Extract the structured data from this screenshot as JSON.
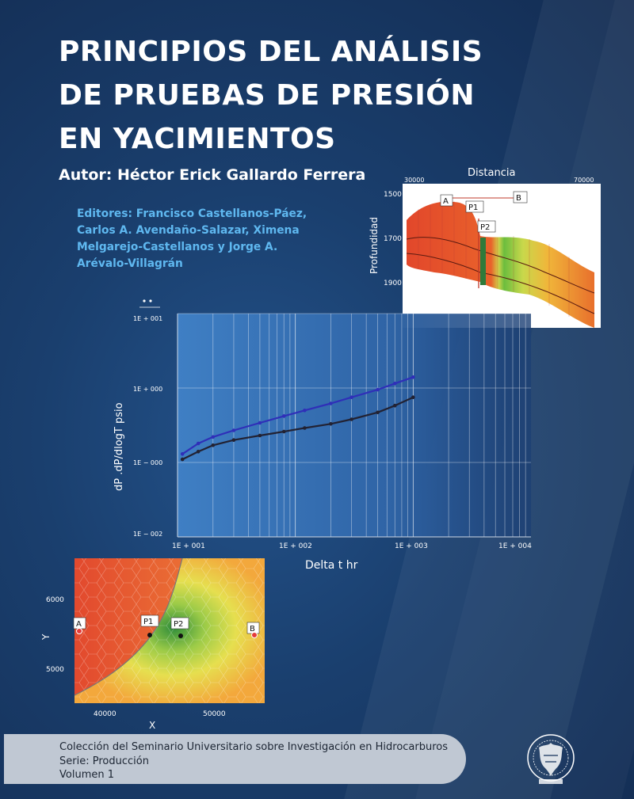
{
  "cover": {
    "title_lines": [
      "PRINCIPIOS DEL ANÁLISIS",
      "DE PRUEBAS DE PRESIÓN",
      "EN YACIMIENTOS"
    ],
    "author": "Autor: Héctor Erick Gallardo Ferrera",
    "editors_lines": [
      "Editores: Francisco Castellanos-Páez,",
      "Carlos A. Avendaño-Salazar, Ximena",
      "Melgarejo-Castellanos y Jorge A.",
      "Arévalo-Villagrán"
    ],
    "footer_lines": [
      "Colección del Seminario Universitario sobre Investigación en Hidrocarburos",
      "Serie: Producción",
      "Volumen 1"
    ],
    "seal_icon": "unam-seal-icon",
    "colors": {
      "background": "#1a3f6e",
      "editors": "#5fb8f0",
      "footer_bg": "#c0c8d3"
    }
  },
  "cross_section": {
    "title": "Distancia",
    "x_ticks": [
      "30000",
      "70000"
    ],
    "y_label": "Profundidad",
    "y_ticks": [
      "1500",
      "1700",
      "1900"
    ],
    "markers": [
      "A",
      "B",
      "P1",
      "P2"
    ]
  },
  "loglog": {
    "x_label": "Delta t hr",
    "y_label": "dP .dP/dlogT psio",
    "x_ticks": [
      "1E + 001",
      "1E + 002",
      "1E + 003",
      "1E + 004"
    ],
    "y_ticks": [
      "1E + 001",
      "1E + 000",
      "1E − 000",
      "1E − 002"
    ]
  },
  "map": {
    "x_label": "X",
    "y_label": "Y",
    "x_ticks": [
      "40000",
      "50000"
    ],
    "y_ticks": [
      "6000",
      "5000"
    ],
    "markers": [
      "A",
      "P1",
      "P2",
      "B"
    ]
  },
  "chart_data": {
    "type": "scatter",
    "x_scale": "log",
    "y_scale": "log",
    "xlabel": "Delta t hr",
    "ylabel": "dP .dP/dlogT psio",
    "xlim": [
      10,
      10000
    ],
    "ylim": [
      0.01,
      10
    ],
    "grid": true,
    "series": [
      {
        "x": [
          11,
          15,
          20,
          30,
          50,
          80,
          120,
          200,
          300,
          500,
          700,
          1000
        ],
        "y": [
          0.13,
          0.18,
          0.22,
          0.27,
          0.34,
          0.42,
          0.5,
          0.62,
          0.75,
          0.95,
          1.15,
          1.4
        ]
      },
      {
        "x": [
          11,
          15,
          20,
          30,
          50,
          80,
          120,
          200,
          300,
          500,
          700,
          1000
        ],
        "y": [
          0.11,
          0.14,
          0.17,
          0.2,
          0.23,
          0.26,
          0.29,
          0.33,
          0.38,
          0.47,
          0.58,
          0.75
        ]
      }
    ]
  }
}
